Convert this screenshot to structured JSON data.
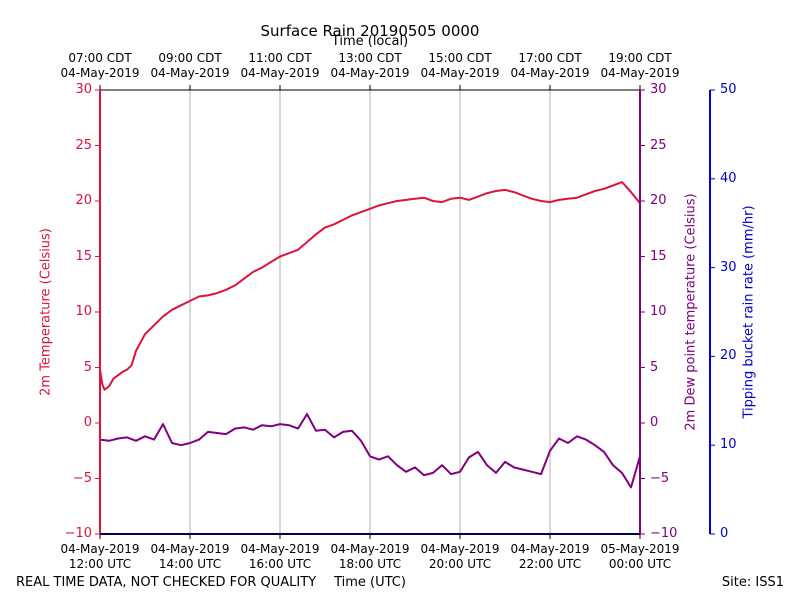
{
  "chart_data": {
    "type": "line",
    "title": "Surface Rain 20190505 0000",
    "top_axis_label": "Time (local)",
    "xlabel": "Time (UTC)",
    "ylabel_left": "2m Temperature (Celsius)",
    "ylabel_right1": "2m Dew point temperature (Celsius)",
    "ylabel_right2": "Tipping bucket rain rate (mm/hr)",
    "ylim_left": [
      -10,
      30
    ],
    "ylim_right1": [
      -10,
      30
    ],
    "ylim_right2": [
      0,
      50
    ],
    "xlim_hours_utc": [
      12,
      24
    ],
    "y_ticks_left": [
      "30",
      "25",
      "20",
      "15",
      "10",
      "5",
      "0",
      "−5",
      "−10"
    ],
    "y_ticks_right1": [
      "30",
      "25",
      "20",
      "15",
      "10",
      "5",
      "0",
      "−5",
      "−10"
    ],
    "y_ticks_right2": [
      "50",
      "40",
      "30",
      "20",
      "10",
      "0"
    ],
    "x_ticks_bottom": [
      {
        "date": "04-May-2019",
        "time": "12:00 UTC"
      },
      {
        "date": "04-May-2019",
        "time": "14:00 UTC"
      },
      {
        "date": "04-May-2019",
        "time": "16:00 UTC"
      },
      {
        "date": "04-May-2019",
        "time": "18:00 UTC"
      },
      {
        "date": "04-May-2019",
        "time": "20:00 UTC"
      },
      {
        "date": "04-May-2019",
        "time": "22:00 UTC"
      },
      {
        "date": "05-May-2019",
        "time": "00:00 UTC"
      }
    ],
    "x_ticks_top": [
      {
        "time": "07:00 CDT",
        "date": "04-May-2019"
      },
      {
        "time": "09:00 CDT",
        "date": "04-May-2019"
      },
      {
        "time": "11:00 CDT",
        "date": "04-May-2019"
      },
      {
        "time": "13:00 CDT",
        "date": "04-May-2019"
      },
      {
        "time": "15:00 CDT",
        "date": "04-May-2019"
      },
      {
        "time": "17:00 CDT",
        "date": "04-May-2019"
      },
      {
        "time": "19:00 CDT",
        "date": "04-May-2019"
      }
    ],
    "grid": "vertical",
    "series": [
      {
        "name": "2m Temperature (Celsius)",
        "color": "#dc143c",
        "x_hours_utc": [
          12.0,
          12.05,
          12.1,
          12.2,
          12.3,
          12.4,
          12.5,
          12.6,
          12.7,
          12.8,
          13.0,
          13.2,
          13.4,
          13.6,
          13.8,
          14.0,
          14.2,
          14.4,
          14.6,
          14.8,
          15.0,
          15.2,
          15.4,
          15.6,
          15.8,
          16.0,
          16.2,
          16.4,
          16.6,
          16.8,
          17.0,
          17.2,
          17.4,
          17.6,
          17.8,
          18.0,
          18.2,
          18.4,
          18.6,
          18.8,
          19.0,
          19.2,
          19.4,
          19.6,
          19.8,
          20.0,
          20.2,
          20.4,
          20.6,
          20.8,
          21.0,
          21.2,
          21.4,
          21.6,
          21.8,
          22.0,
          22.2,
          22.4,
          22.6,
          22.8,
          23.0,
          23.2,
          23.4,
          23.6,
          23.8,
          24.0
        ],
        "values": [
          4.8,
          3.5,
          3.0,
          3.3,
          4.0,
          4.3,
          4.6,
          4.8,
          5.2,
          6.5,
          8.0,
          8.8,
          9.6,
          10.2,
          10.6,
          11.0,
          11.4,
          11.5,
          11.7,
          12.0,
          12.4,
          13.0,
          13.6,
          14.0,
          14.5,
          15.0,
          15.3,
          15.6,
          16.3,
          17.0,
          17.6,
          17.9,
          18.3,
          18.7,
          19.0,
          19.3,
          19.6,
          19.8,
          20.0,
          20.1,
          20.2,
          20.3,
          20.0,
          19.9,
          20.2,
          20.3,
          20.1,
          20.4,
          20.7,
          20.9,
          21.0,
          20.8,
          20.5,
          20.2,
          20.0,
          19.9,
          20.1,
          20.2,
          20.3,
          20.6,
          20.9,
          21.1,
          21.4,
          21.7,
          20.8,
          19.8
        ]
      },
      {
        "name": "2m Dew point temperature (Celsius)",
        "color": "#800080",
        "x_hours_utc": [
          12.0,
          12.2,
          12.4,
          12.6,
          12.8,
          13.0,
          13.2,
          13.4,
          13.6,
          13.8,
          14.0,
          14.2,
          14.4,
          14.6,
          14.8,
          15.0,
          15.2,
          15.4,
          15.6,
          15.8,
          16.0,
          16.2,
          16.4,
          16.6,
          16.8,
          17.0,
          17.2,
          17.4,
          17.6,
          17.8,
          18.0,
          18.2,
          18.4,
          18.6,
          18.8,
          19.0,
          19.2,
          19.4,
          19.6,
          19.8,
          20.0,
          20.2,
          20.4,
          20.6,
          20.8,
          21.0,
          21.2,
          21.4,
          21.6,
          21.8,
          22.0,
          22.2,
          22.4,
          22.6,
          22.8,
          23.0,
          23.2,
          23.4,
          23.6,
          23.8,
          24.0
        ],
        "values": [
          -1.5,
          -1.6,
          -1.4,
          -1.3,
          -1.6,
          -1.2,
          -1.5,
          -0.1,
          -1.8,
          -2.0,
          -1.8,
          -1.5,
          -0.8,
          -0.9,
          -1.0,
          -0.5,
          -0.4,
          -0.6,
          -0.2,
          -0.3,
          -0.1,
          -0.2,
          -0.5,
          0.8,
          -0.7,
          -0.6,
          -1.3,
          -0.8,
          -0.7,
          -1.6,
          -3.0,
          -3.3,
          -3.0,
          -3.8,
          -4.4,
          -4.0,
          -4.7,
          -4.5,
          -3.8,
          -4.6,
          -4.4,
          -3.1,
          -2.6,
          -3.8,
          -4.5,
          -3.5,
          -4.0,
          -4.2,
          -4.4,
          -4.6,
          -2.5,
          -1.4,
          -1.8,
          -1.2,
          -1.5,
          -2.0,
          -2.6,
          -3.8,
          -4.5,
          -5.8,
          -3.0
        ]
      },
      {
        "name": "Tipping bucket rain rate (mm/hr)",
        "color": "#00008b",
        "x_hours_utc": [
          12.0,
          24.0
        ],
        "values": [
          0,
          0
        ]
      }
    ],
    "annotations": {
      "footer_left": "REAL TIME DATA, NOT CHECKED FOR QUALITY",
      "footer_right": "Site: ISS1"
    }
  }
}
